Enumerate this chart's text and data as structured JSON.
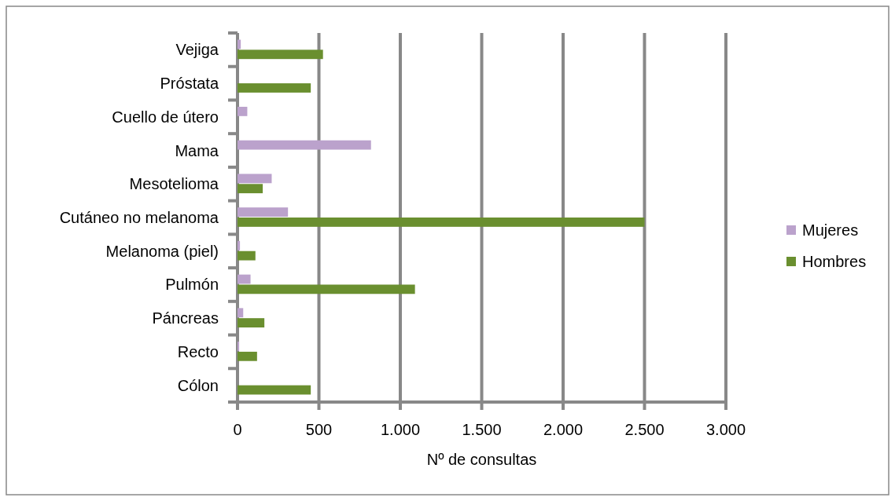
{
  "chart_data": {
    "type": "bar",
    "orientation": "horizontal",
    "categories": [
      "Vejiga",
      "Próstata",
      "Cuello de útero",
      "Mama",
      "Mesotelioma",
      "Cutáneo no melanoma",
      "Melanoma (piel)",
      "Pulmón",
      "Páncreas",
      "Recto",
      "Cólon"
    ],
    "series": [
      {
        "name": "Mujeres",
        "color": "#bba2cc",
        "values": [
          20,
          0,
          60,
          820,
          210,
          310,
          15,
          80,
          35,
          10,
          0
        ]
      },
      {
        "name": "Hombres",
        "color": "#6a8f2f",
        "values": [
          525,
          450,
          0,
          0,
          155,
          2500,
          110,
          1090,
          165,
          120,
          450
        ]
      }
    ],
    "xlabel": "Nº de consultas",
    "xlim": [
      0,
      3000
    ],
    "xticks": [
      0,
      {
        "value": 500,
        "label": "500"
      },
      {
        "value": 1000,
        "label": "1.000"
      },
      {
        "value": 1500,
        "label": "1.500"
      },
      {
        "value": 2000,
        "label": "2.000"
      },
      {
        "value": 2500,
        "label": "2.500"
      },
      {
        "value": 3000,
        "label": "3.000"
      }
    ],
    "grid": "x",
    "legend": "right"
  }
}
